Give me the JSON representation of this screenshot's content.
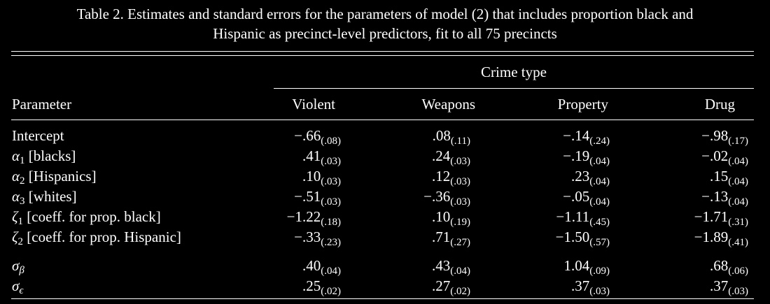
{
  "caption": {
    "line1": "Table 2.  Estimates and standard errors for the parameters of model (2) that includes proportion black and",
    "line2": "Hispanic as precinct-level predictors, fit to all 75 precincts"
  },
  "table": {
    "group_header": "Crime type",
    "param_header": "Parameter",
    "columns": [
      "Violent",
      "Weapons",
      "Property",
      "Drug"
    ],
    "rows": [
      {
        "symbol": "",
        "sub": "",
        "label": "Intercept",
        "values": [
          {
            "est": "−.66",
            "se": "(.08)"
          },
          {
            "est": ".08",
            "se": "(.11)"
          },
          {
            "est": "−.14",
            "se": "(.24)"
          },
          {
            "est": "−.98",
            "se": "(.17)"
          }
        ]
      },
      {
        "symbol": "α",
        "sub": "1",
        "label": "[blacks]",
        "values": [
          {
            "est": ".41",
            "se": "(.03)"
          },
          {
            "est": ".24",
            "se": "(.03)"
          },
          {
            "est": "−.19",
            "se": "(.04)"
          },
          {
            "est": "−.02",
            "se": "(.04)"
          }
        ]
      },
      {
        "symbol": "α",
        "sub": "2",
        "label": "[Hispanics]",
        "values": [
          {
            "est": ".10",
            "se": "(.03)"
          },
          {
            "est": ".12",
            "se": "(.03)"
          },
          {
            "est": ".23",
            "se": "(.04)"
          },
          {
            "est": ".15",
            "se": "(.04)"
          }
        ]
      },
      {
        "symbol": "α",
        "sub": "3",
        "label": "[whites]",
        "values": [
          {
            "est": "−.51",
            "se": "(.03)"
          },
          {
            "est": "−.36",
            "se": "(.03)"
          },
          {
            "est": "−.05",
            "se": "(.04)"
          },
          {
            "est": "−.13",
            "se": "(.04)"
          }
        ]
      },
      {
        "symbol": "ζ",
        "sub": "1",
        "label": "[coeff. for prop. black]",
        "values": [
          {
            "est": "−1.22",
            "se": "(.18)"
          },
          {
            "est": ".10",
            "se": "(.19)"
          },
          {
            "est": "−1.11",
            "se": "(.45)"
          },
          {
            "est": "−1.71",
            "se": "(.31)"
          }
        ]
      },
      {
        "symbol": "ζ",
        "sub": "2",
        "label": "[coeff. for prop. Hispanic]",
        "values": [
          {
            "est": "−.33",
            "se": "(.23)"
          },
          {
            "est": ".71",
            "se": "(.27)"
          },
          {
            "est": "−1.50",
            "se": "(.57)"
          },
          {
            "est": "−1.89",
            "se": "(.41)"
          }
        ]
      },
      {
        "symbol": "σ",
        "sub": "β",
        "label": "",
        "values": [
          {
            "est": ".40",
            "se": "(.04)"
          },
          {
            "est": ".43",
            "se": "(.04)"
          },
          {
            "est": "1.04",
            "se": "(.09)"
          },
          {
            "est": ".68",
            "se": "(.06)"
          }
        ]
      },
      {
        "symbol": "σ",
        "sub": "ϵ",
        "label": "",
        "values": [
          {
            "est": ".25",
            "se": "(.02)"
          },
          {
            "est": ".27",
            "se": "(.02)"
          },
          {
            "est": ".37",
            "se": "(.03)"
          },
          {
            "est": ".37",
            "se": "(.03)"
          }
        ]
      }
    ]
  }
}
